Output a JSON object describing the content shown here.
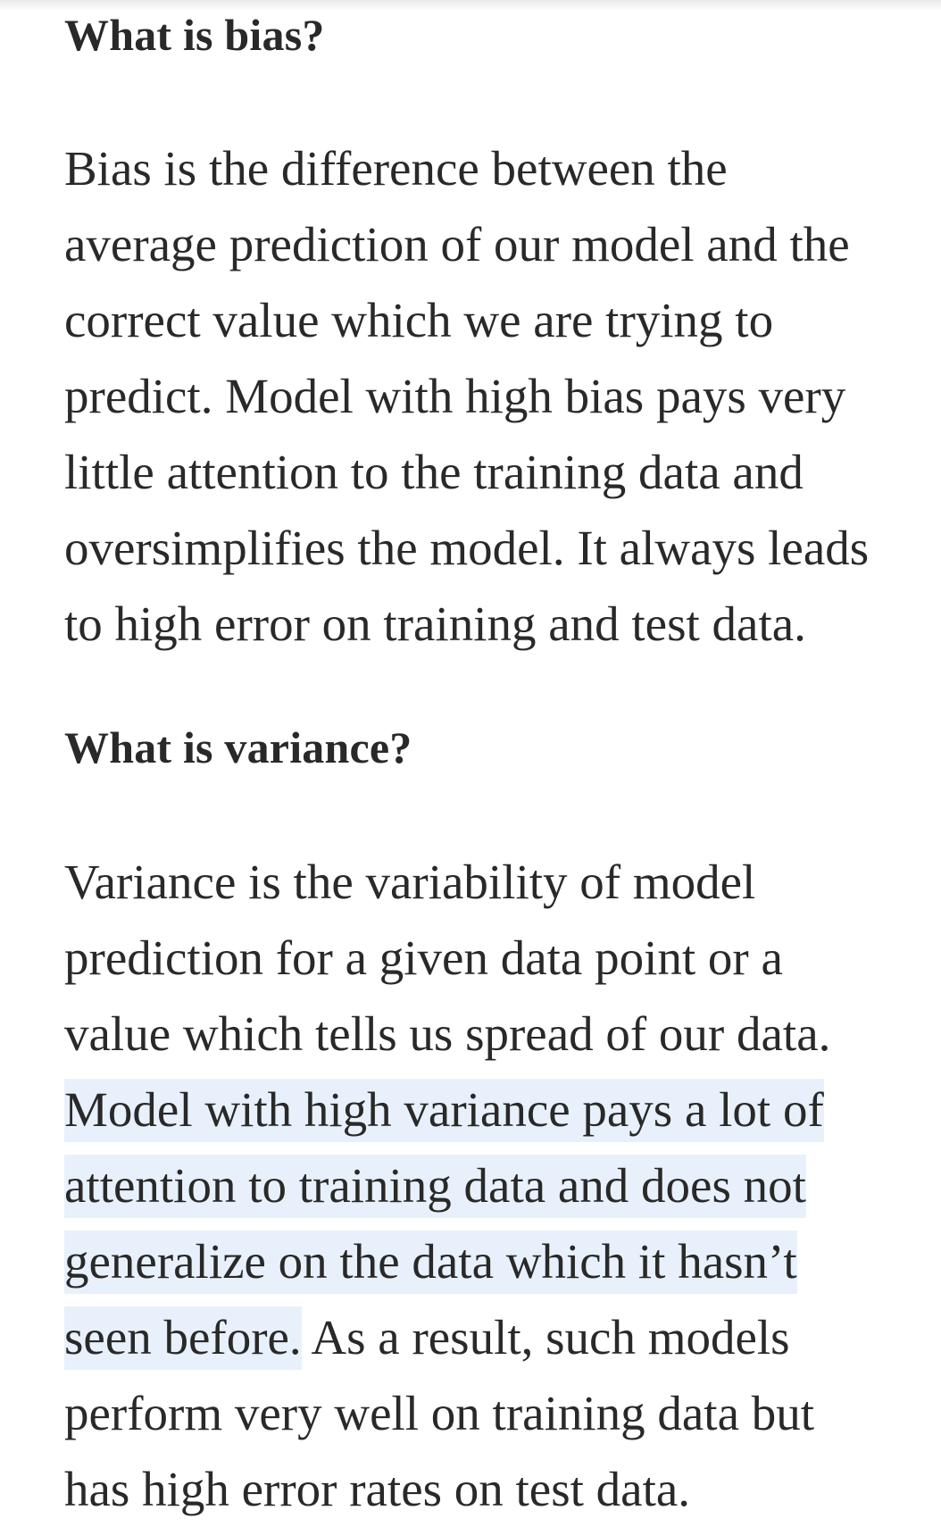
{
  "section_bias": {
    "heading": "What is bias?",
    "lines": [
      "Bias is the difference between the",
      "average prediction of our model and the",
      "correct value which we are trying to",
      "predict. Model with high bias pays very",
      "little attention to the training data and",
      "oversimplifies the model. It always leads",
      "to high error on training and test data."
    ]
  },
  "section_variance": {
    "heading": "What is variance?",
    "lines_plain": [
      "Variance is the variability of model",
      "prediction for a given data point or a",
      "value which tells us spread of our data."
    ],
    "highlighted": [
      "Model with high variance pays a lot of",
      "attention to training data and does not",
      "generalize on the data which it hasn’t",
      "seen before."
    ],
    "after_highlight": " As a result, such models",
    "lines_end": [
      "perform very well on training data but",
      "has high error rates on test data."
    ]
  },
  "colors": {
    "text": "#292929",
    "highlight": "#e8f1fb",
    "background": "#ffffff"
  }
}
